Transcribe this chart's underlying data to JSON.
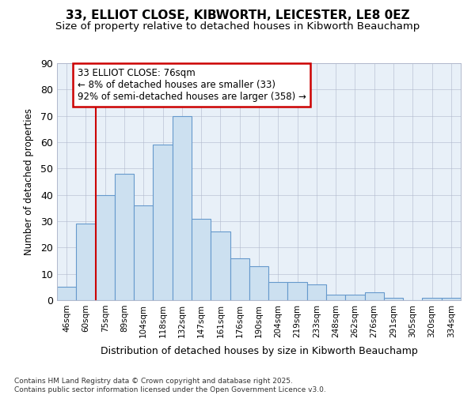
{
  "title1": "33, ELLIOT CLOSE, KIBWORTH, LEICESTER, LE8 0EZ",
  "title2": "Size of property relative to detached houses in Kibworth Beauchamp",
  "xlabel": "Distribution of detached houses by size in Kibworth Beauchamp",
  "ylabel": "Number of detached properties",
  "categories": [
    "46sqm",
    "60sqm",
    "75sqm",
    "89sqm",
    "104sqm",
    "118sqm",
    "132sqm",
    "147sqm",
    "161sqm",
    "176sqm",
    "190sqm",
    "204sqm",
    "219sqm",
    "233sqm",
    "248sqm",
    "262sqm",
    "276sqm",
    "291sqm",
    "305sqm",
    "320sqm",
    "334sqm"
  ],
  "values": [
    5,
    29,
    40,
    48,
    36,
    59,
    70,
    31,
    26,
    16,
    13,
    7,
    7,
    6,
    2,
    2,
    3,
    1,
    0,
    1,
    1
  ],
  "bar_color": "#cce0f0",
  "bar_edge_color": "#6699cc",
  "vline_x": 2,
  "vline_color": "#cc0000",
  "annotation_text": "33 ELLIOT CLOSE: 76sqm\n← 8% of detached houses are smaller (33)\n92% of semi-detached houses are larger (358) →",
  "annotation_box_color": "#ffffff",
  "annotation_box_edge": "#cc0000",
  "ylim": [
    0,
    90
  ],
  "yticks": [
    0,
    10,
    20,
    30,
    40,
    50,
    60,
    70,
    80,
    90
  ],
  "footer": "Contains HM Land Registry data © Crown copyright and database right 2025.\nContains public sector information licensed under the Open Government Licence v3.0.",
  "bg_color": "#ffffff",
  "plot_bg_color": "#e8f0f8"
}
